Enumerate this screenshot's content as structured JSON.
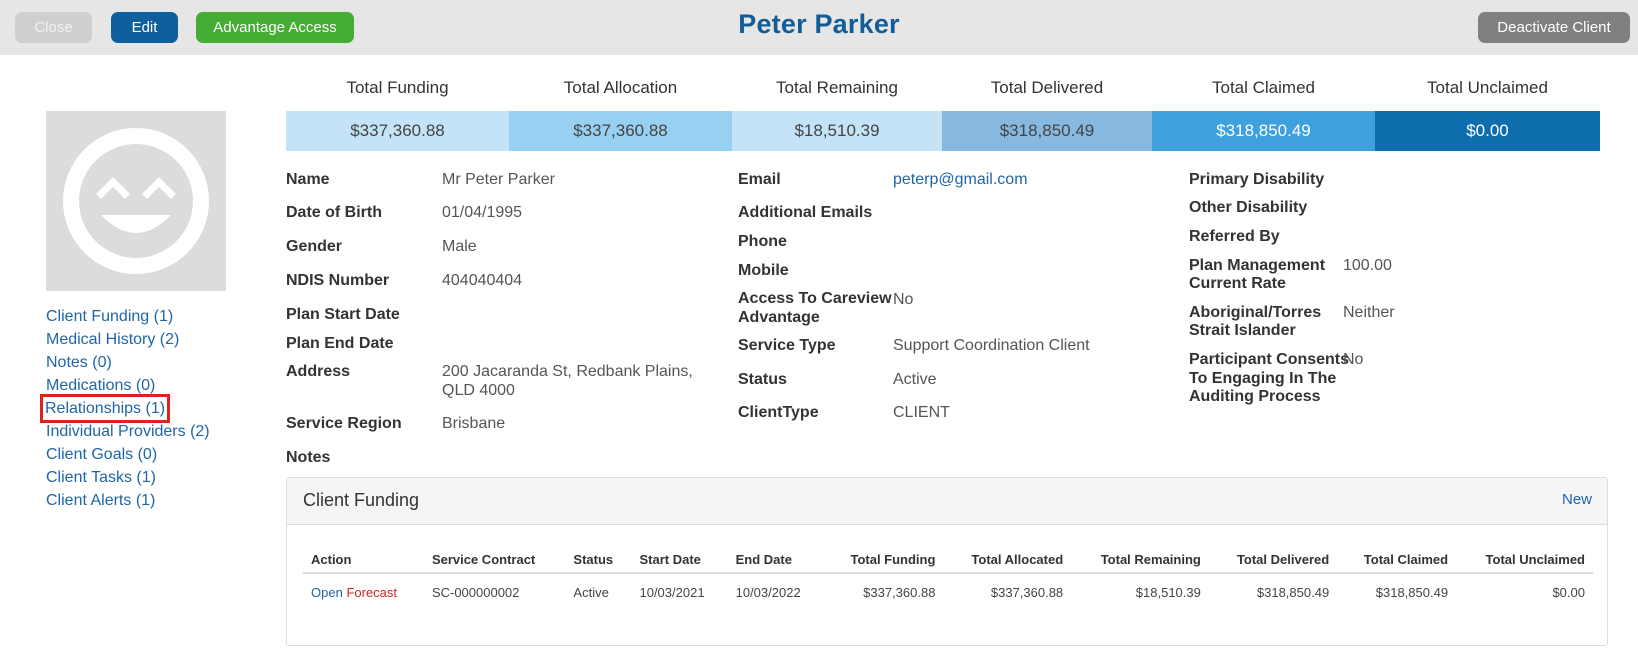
{
  "header": {
    "close_label": "Close",
    "edit_label": "Edit",
    "advantage_label": "Advantage Access",
    "title": "Peter Parker",
    "deactivate_label": "Deactivate Client"
  },
  "totals": [
    {
      "label": "Total Funding",
      "value": "$337,360.88",
      "bg": "#c4e3f7",
      "fg": "#444444"
    },
    {
      "label": "Total Allocation",
      "value": "$337,360.88",
      "bg": "#97d0f0",
      "fg": "#444444"
    },
    {
      "label": "Total Remaining",
      "value": "$18,510.39",
      "bg": "#c4e3f7",
      "fg": "#444444"
    },
    {
      "label": "Total Delivered",
      "value": "$318,850.49",
      "bg": "#87b8df",
      "fg": "#444444"
    },
    {
      "label": "Total Claimed",
      "value": "$318,850.49",
      "bg": "#3ea0dc",
      "fg": "#ffffff"
    },
    {
      "label": "Total Unclaimed",
      "value": "$0.00",
      "bg": "#0e6ead",
      "fg": "#ffffff"
    }
  ],
  "sidenav": [
    {
      "label": "Client Funding (1)"
    },
    {
      "label": "Medical History (2)"
    },
    {
      "label": "Notes (0)"
    },
    {
      "label": "Medications (0)"
    },
    {
      "label": "Relationships (1)",
      "highlighted": true
    },
    {
      "label": "Individual Providers (2)"
    },
    {
      "label": "Client Goals (0)"
    },
    {
      "label": "Client Tasks (1)"
    },
    {
      "label": "Client Alerts (1)"
    }
  ],
  "details": {
    "col1": [
      {
        "label": "Name",
        "value": "Mr Peter Parker"
      },
      {
        "label": "Date of Birth",
        "value": "01/04/1995"
      },
      {
        "label": "Gender",
        "value": "Male"
      },
      {
        "label": "NDIS Number",
        "value": "404040404"
      },
      {
        "label": "Plan Start Date",
        "value": ""
      },
      {
        "label": "Plan End Date",
        "value": ""
      },
      {
        "label": "Address",
        "value": "200 Jacaranda St, Redbank Plains,",
        "value2": "QLD 4000"
      },
      {
        "label": "Service Region",
        "value": "Brisbane"
      },
      {
        "label": "Notes",
        "value": ""
      }
    ],
    "col2": [
      {
        "label": "Email",
        "value": "peterp@gmail.com"
      },
      {
        "label": "Additional Emails",
        "value": ""
      },
      {
        "label": "Phone",
        "value": ""
      },
      {
        "label": "Mobile",
        "value": ""
      },
      {
        "label": "Access To Careview",
        "label2": "Advantage",
        "value": "No"
      },
      {
        "label": "Service Type",
        "value": "Support Coordination Client"
      },
      {
        "label": "Status",
        "value": "Active"
      },
      {
        "label": "ClientType",
        "value": "CLIENT"
      }
    ],
    "col3": [
      {
        "label": "Primary Disability",
        "value": ""
      },
      {
        "label": "Other Disability",
        "value": ""
      },
      {
        "label": "Referred By",
        "value": ""
      },
      {
        "label": "Plan Management",
        "label2": "Current Rate",
        "value": "100.00"
      },
      {
        "label": "Aboriginal/Torres",
        "label2": "Strait Islander",
        "value": "Neither"
      },
      {
        "label": "Participant Consents",
        "label2": "To Engaging In The",
        "label3": "Auditing Process",
        "value": "No"
      }
    ]
  },
  "funding": {
    "title": "Client Funding",
    "new_label": "New",
    "columns": [
      "Action",
      "Service Contract",
      "Status",
      "Start Date",
      "End Date",
      "Total Funding",
      "Total Allocated",
      "Total Remaining",
      "Total Delivered",
      "Total Claimed",
      "Total Unclaimed"
    ],
    "rows": [
      {
        "open": "Open",
        "forecast": "Forecast",
        "service_contract": "SC-000000002",
        "status": "Active",
        "start_date": "10/03/2021",
        "end_date": "10/03/2022",
        "total_funding": "$337,360.88",
        "total_allocated": "$337,360.88",
        "total_remaining": "$18,510.39",
        "total_delivered": "$318,850.49",
        "total_claimed": "$318,850.49",
        "total_unclaimed": "$0.00"
      }
    ]
  }
}
